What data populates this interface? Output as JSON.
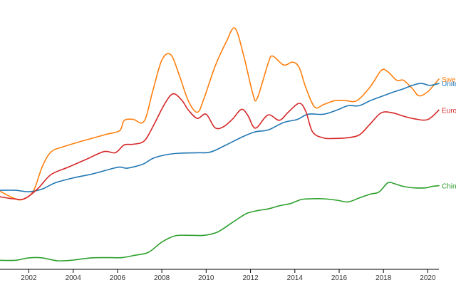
{
  "chart_data": {
    "type": "line",
    "title": "",
    "xlabel": "",
    "ylabel": "",
    "xlim": [
      2000.7,
      2020.5
    ],
    "ylim": [
      0,
      100
    ],
    "grid": false,
    "legend": "labels at end of lines",
    "x_ticks": [
      2002,
      2004,
      2006,
      2008,
      2010,
      2012,
      2014,
      2016,
      2018,
      2020
    ],
    "series": [
      {
        "name": "Swed",
        "color": "#ff7f0e",
        "points": [
          [
            2000.7,
            28.7
          ],
          [
            2001.3,
            25.9
          ],
          [
            2001.7,
            25.3
          ],
          [
            2002.2,
            28.7
          ],
          [
            2002.6,
            38.7
          ],
          [
            2003.0,
            44.9
          ],
          [
            2003.6,
            47.2
          ],
          [
            2004.4,
            49.4
          ],
          [
            2005.5,
            52.2
          ],
          [
            2006.1,
            53.7
          ],
          [
            2006.3,
            57.9
          ],
          [
            2006.7,
            58.4
          ],
          [
            2007.2,
            57.6
          ],
          [
            2007.6,
            70.4
          ],
          [
            2008.0,
            82.8
          ],
          [
            2008.4,
            85.1
          ],
          [
            2008.8,
            76.3
          ],
          [
            2009.2,
            65.9
          ],
          [
            2009.6,
            61.3
          ],
          [
            2009.9,
            66.9
          ],
          [
            2010.4,
            80.2
          ],
          [
            2010.9,
            90.2
          ],
          [
            2011.3,
            96.0
          ],
          [
            2011.7,
            84.4
          ],
          [
            2012.1,
            69.1
          ],
          [
            2012.3,
            67.0
          ],
          [
            2012.8,
            81.6
          ],
          [
            2013.0,
            84.5
          ],
          [
            2013.5,
            80.8
          ],
          [
            2013.9,
            82.0
          ],
          [
            2014.2,
            79.7
          ],
          [
            2014.5,
            71.4
          ],
          [
            2014.9,
            63.4
          ],
          [
            2015.3,
            64.5
          ],
          [
            2015.8,
            66.1
          ],
          [
            2016.3,
            66.1
          ],
          [
            2016.8,
            66.1
          ],
          [
            2017.4,
            71.8
          ],
          [
            2017.9,
            78.6
          ],
          [
            2018.2,
            78.0
          ],
          [
            2018.6,
            74.5
          ],
          [
            2018.9,
            74.5
          ],
          [
            2019.3,
            71.1
          ],
          [
            2019.6,
            68.1
          ],
          [
            2020.0,
            69.8
          ],
          [
            2020.5,
            75.0
          ]
        ]
      },
      {
        "name": "Unite",
        "color": "#1f77b4",
        "points": [
          [
            2000.7,
            29.1
          ],
          [
            2001.4,
            29.1
          ],
          [
            2002.0,
            28.5
          ],
          [
            2002.6,
            29.6
          ],
          [
            2003.2,
            32.2
          ],
          [
            2004.0,
            34.2
          ],
          [
            2004.9,
            35.9
          ],
          [
            2005.7,
            37.9
          ],
          [
            2006.1,
            38.7
          ],
          [
            2006.4,
            38.2
          ],
          [
            2006.8,
            38.9
          ],
          [
            2007.2,
            40.1
          ],
          [
            2007.6,
            42.3
          ],
          [
            2008.2,
            43.8
          ],
          [
            2008.8,
            44.4
          ],
          [
            2009.6,
            44.6
          ],
          [
            2010.2,
            44.9
          ],
          [
            2010.9,
            47.8
          ],
          [
            2011.6,
            51.0
          ],
          [
            2012.2,
            53.2
          ],
          [
            2012.8,
            54.0
          ],
          [
            2013.5,
            57.1
          ],
          [
            2014.1,
            58.3
          ],
          [
            2014.6,
            60.5
          ],
          [
            2015.3,
            60.5
          ],
          [
            2015.9,
            62.2
          ],
          [
            2016.4,
            64.0
          ],
          [
            2016.9,
            64.0
          ],
          [
            2017.4,
            66.1
          ],
          [
            2017.9,
            67.8
          ],
          [
            2018.4,
            69.5
          ],
          [
            2018.9,
            71.0
          ],
          [
            2019.3,
            72.4
          ],
          [
            2019.7,
            73.2
          ],
          [
            2020.1,
            72.4
          ],
          [
            2020.5,
            73.2
          ]
        ]
      },
      {
        "name": "Euro",
        "color": "#d62728",
        "points": [
          [
            2000.7,
            26.4
          ],
          [
            2001.3,
            25.6
          ],
          [
            2001.8,
            25.6
          ],
          [
            2002.4,
            29.7
          ],
          [
            2003.0,
            35.6
          ],
          [
            2003.8,
            38.7
          ],
          [
            2004.6,
            41.9
          ],
          [
            2005.4,
            45.1
          ],
          [
            2005.9,
            44.6
          ],
          [
            2006.3,
            47.8
          ],
          [
            2006.7,
            48.1
          ],
          [
            2007.2,
            49.4
          ],
          [
            2007.6,
            55.4
          ],
          [
            2008.1,
            64.3
          ],
          [
            2008.5,
            68.9
          ],
          [
            2008.9,
            66.3
          ],
          [
            2009.2,
            62.2
          ],
          [
            2009.6,
            58.8
          ],
          [
            2010.0,
            60.5
          ],
          [
            2010.4,
            54.9
          ],
          [
            2010.8,
            55.4
          ],
          [
            2011.2,
            58.6
          ],
          [
            2011.6,
            62.5
          ],
          [
            2011.9,
            59.7
          ],
          [
            2012.1,
            55.7
          ],
          [
            2012.3,
            55.1
          ],
          [
            2012.8,
            60.2
          ],
          [
            2013.3,
            58.0
          ],
          [
            2013.7,
            61.3
          ],
          [
            2014.2,
            65.0
          ],
          [
            2014.5,
            61.6
          ],
          [
            2014.8,
            53.2
          ],
          [
            2015.3,
            50.7
          ],
          [
            2015.8,
            50.5
          ],
          [
            2016.3,
            50.7
          ],
          [
            2016.9,
            51.9
          ],
          [
            2017.4,
            56.5
          ],
          [
            2017.9,
            61.1
          ],
          [
            2018.4,
            61.1
          ],
          [
            2018.9,
            59.7
          ],
          [
            2019.4,
            58.6
          ],
          [
            2020.0,
            58.3
          ],
          [
            2020.5,
            62.2
          ]
        ]
      },
      {
        "name": "Chin",
        "color": "#2ca02c",
        "points": [
          [
            2000.7,
            0.2
          ],
          [
            2001.4,
            0.2
          ],
          [
            2002.0,
            1.2
          ],
          [
            2002.6,
            1.2
          ],
          [
            2003.3,
            0.0
          ],
          [
            2004.0,
            0.3
          ],
          [
            2004.8,
            1.2
          ],
          [
            2005.6,
            1.3
          ],
          [
            2006.2,
            1.3
          ],
          [
            2006.8,
            2.3
          ],
          [
            2007.4,
            3.5
          ],
          [
            2008.0,
            7.7
          ],
          [
            2008.6,
            10.3
          ],
          [
            2009.3,
            10.5
          ],
          [
            2009.9,
            10.5
          ],
          [
            2010.5,
            11.8
          ],
          [
            2011.2,
            15.9
          ],
          [
            2011.8,
            19.4
          ],
          [
            2012.3,
            20.7
          ],
          [
            2012.8,
            21.4
          ],
          [
            2013.3,
            22.7
          ],
          [
            2013.8,
            23.6
          ],
          [
            2014.3,
            25.3
          ],
          [
            2014.8,
            25.6
          ],
          [
            2015.3,
            25.6
          ],
          [
            2015.9,
            25.0
          ],
          [
            2016.4,
            24.3
          ],
          [
            2016.9,
            25.9
          ],
          [
            2017.4,
            27.5
          ],
          [
            2017.8,
            28.4
          ],
          [
            2018.2,
            32.2
          ],
          [
            2018.5,
            31.8
          ],
          [
            2018.9,
            30.7
          ],
          [
            2019.4,
            30.1
          ],
          [
            2019.9,
            30.1
          ],
          [
            2020.2,
            30.7
          ],
          [
            2020.5,
            31.0
          ]
        ]
      }
    ]
  }
}
